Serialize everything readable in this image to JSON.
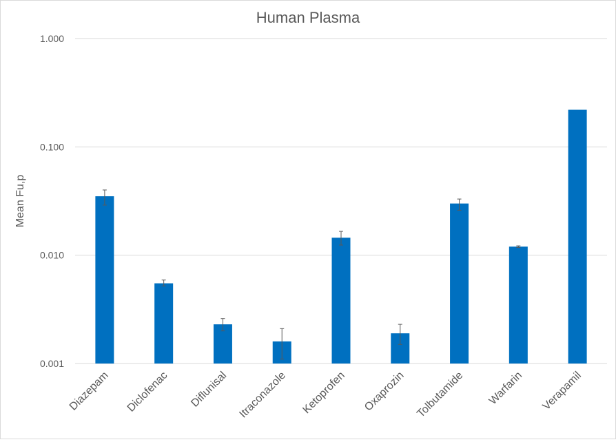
{
  "chart_data": {
    "type": "bar",
    "title": "Human Plasma",
    "xlabel": "",
    "ylabel": "Mean Fu,p",
    "yscale": "log",
    "ylim": [
      0.001,
      1.0
    ],
    "yticks": [
      "0.001",
      "0.010",
      "0.100",
      "1.000"
    ],
    "grid": true,
    "legend": "none",
    "categories": [
      "Diazepam",
      "Diclofenac",
      "Diflunisal",
      "Itraconazole",
      "Ketoprofen",
      "Oxaprozin",
      "Tolbutamide",
      "Warfarin",
      "Verapamil"
    ],
    "values": [
      0.035,
      0.0055,
      0.0023,
      0.0016,
      0.0145,
      0.0019,
      0.03,
      0.012,
      0.22
    ],
    "error_upper": [
      0.04,
      0.0059,
      0.0026,
      0.0021,
      0.0166,
      0.0023,
      0.033,
      0.0122,
      0.22
    ],
    "error_lower": [
      0.029,
      0.0052,
      0.002,
      0.0011,
      0.0124,
      0.0015,
      0.026,
      0.0118,
      0.22
    ],
    "colors": {
      "bar": "#0070c0",
      "grid": "#d9d9d9",
      "error": "#595959",
      "text": "#595959"
    }
  }
}
